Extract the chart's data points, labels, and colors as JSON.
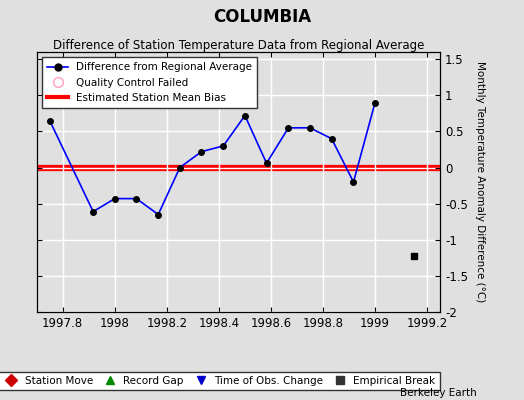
{
  "title": "COLUMBIA",
  "subtitle": "Difference of Station Temperature Data from Regional Average",
  "ylabel": "Monthly Temperature Anomaly Difference (°C)",
  "xlim": [
    1997.7,
    1999.25
  ],
  "ylim": [
    -2.0,
    1.6
  ],
  "xticks": [
    1997.8,
    1998.0,
    1998.2,
    1998.4,
    1998.6,
    1998.8,
    1999.0,
    1999.2
  ],
  "yticks": [
    -2.0,
    -1.5,
    -1.0,
    -0.5,
    0.0,
    0.5,
    1.0,
    1.5
  ],
  "background_color": "#e0e0e0",
  "plot_bg_color": "#e0e0e0",
  "grid_color": "#ffffff",
  "main_line_color": "#0000ff",
  "bias_line_color": "#ff0000",
  "bias_value": 0.0,
  "x_data": [
    1997.75,
    1997.917,
    1998.0,
    1998.083,
    1998.167,
    1998.25,
    1998.333,
    1998.417,
    1998.5,
    1998.583,
    1998.667,
    1998.75,
    1998.833,
    1998.917,
    1999.0
  ],
  "y_data": [
    0.65,
    -0.61,
    -0.43,
    -0.43,
    -0.65,
    0.0,
    0.22,
    0.3,
    0.72,
    0.06,
    0.55,
    0.55,
    0.4,
    -0.2,
    0.9
  ],
  "isolated_point_x": [
    1999.15
  ],
  "isolated_point_y": [
    -1.22
  ],
  "watermark": "Berkeley Earth",
  "legend1_label": "Difference from Regional Average",
  "legend2_label": "Quality Control Failed",
  "legend3_label": "Estimated Station Mean Bias",
  "bottom_legend": [
    {
      "marker": "D",
      "color": "#cc0000",
      "label": "Station Move"
    },
    {
      "marker": "^",
      "color": "#008800",
      "label": "Record Gap"
    },
    {
      "marker": "v",
      "color": "#0000cc",
      "label": "Time of Obs. Change"
    },
    {
      "marker": "s",
      "color": "#333333",
      "label": "Empirical Break"
    }
  ]
}
